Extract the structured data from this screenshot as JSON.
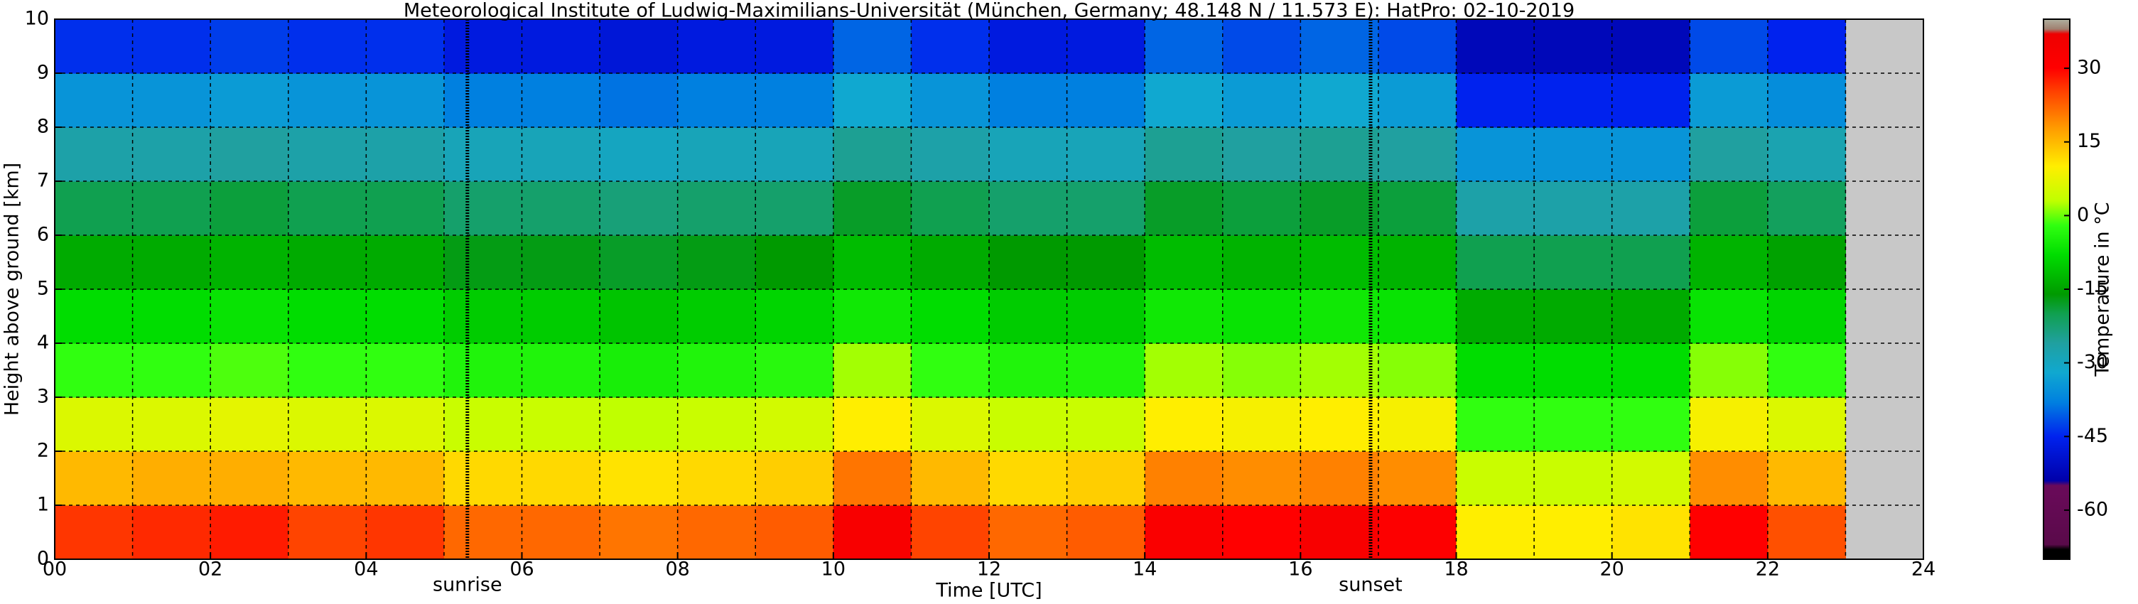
{
  "chart_data": {
    "type": "heatmap",
    "title": "Meteorological Institute of Ludwig-Maximilians-Universität (München, Germany; 48.148 N / 11.573 E):    HatPro: 02-10-2019",
    "xlabel": "Time [UTC]",
    "ylabel": "Height above ground [km]",
    "xlim": [
      0,
      24
    ],
    "ylim": [
      0,
      10
    ],
    "xticks": [
      {
        "value": 0,
        "label": "00"
      },
      {
        "value": 2,
        "label": "02"
      },
      {
        "value": 4,
        "label": "04"
      },
      {
        "value": 6,
        "label": "06"
      },
      {
        "value": 8,
        "label": "08"
      },
      {
        "value": 10,
        "label": "10"
      },
      {
        "value": 12,
        "label": "12"
      },
      {
        "value": 14,
        "label": "14"
      },
      {
        "value": 16,
        "label": "16"
      },
      {
        "value": 18,
        "label": "18"
      },
      {
        "value": 20,
        "label": "20"
      },
      {
        "value": 22,
        "label": "22"
      },
      24
    ],
    "xminorticks": [
      1,
      3,
      5,
      7,
      9,
      11,
      13,
      15,
      17,
      19,
      21,
      23
    ],
    "yticks": [
      0,
      1,
      2,
      3,
      4,
      5,
      6,
      7,
      8,
      9,
      10
    ],
    "grid": true,
    "annotations": [
      {
        "text": "sunrise",
        "x": 5.3
      },
      {
        "text": "sunset",
        "x": 16.9
      }
    ],
    "x_bins": [
      0,
      1,
      2,
      3,
      4,
      5,
      6,
      7,
      8,
      9,
      10,
      11,
      12,
      13,
      14,
      15,
      16,
      17,
      18,
      19,
      20,
      21,
      22,
      23
    ],
    "y_bins": [
      0,
      1,
      2,
      3,
      4,
      5,
      6,
      7,
      8,
      9,
      10
    ],
    "values": [
      [
        26,
        27,
        28,
        25,
        26,
        22,
        22,
        21,
        22,
        23,
        33,
        25,
        22,
        23,
        32,
        30,
        33,
        31,
        10,
        10,
        11,
        30,
        24
      ],
      [
        15,
        16,
        16,
        15,
        15,
        12,
        12,
        11,
        12,
        13,
        21,
        15,
        12,
        13,
        20,
        19,
        20,
        19,
        4,
        4,
        5,
        19,
        15
      ],
      [
        6,
        6,
        7,
        6,
        6,
        4,
        4,
        3,
        4,
        5,
        10,
        6,
        4,
        4,
        10,
        9,
        10,
        9,
        -2,
        -2,
        -2,
        9,
        6
      ],
      [
        -2,
        -2,
        -1,
        -2,
        -2,
        -4,
        -4,
        -5,
        -4,
        -3,
        2,
        -2,
        -4,
        -4,
        2,
        1,
        2,
        1,
        -8,
        -8,
        -8,
        1,
        -2
      ],
      [
        -8,
        -8,
        -7,
        -8,
        -8,
        -10,
        -10,
        -11,
        -10,
        -9,
        -6,
        -8,
        -10,
        -10,
        -6,
        -7,
        -6,
        -7,
        -14,
        -14,
        -14,
        -7,
        -9
      ],
      [
        -14,
        -14,
        -13,
        -14,
        -14,
        -17,
        -17,
        -18,
        -17,
        -16,
        -12,
        -14,
        -16,
        -16,
        -12,
        -13,
        -12,
        -13,
        -20,
        -20,
        -20,
        -13,
        -15
      ],
      [
        -20,
        -20,
        -19,
        -20,
        -20,
        -22,
        -22,
        -23,
        -22,
        -22,
        -18,
        -20,
        -22,
        -22,
        -18,
        -19,
        -18,
        -19,
        -27,
        -27,
        -27,
        -19,
        -21
      ],
      [
        -27,
        -27,
        -26,
        -27,
        -27,
        -29,
        -29,
        -30,
        -29,
        -29,
        -25,
        -27,
        -29,
        -29,
        -25,
        -26,
        -25,
        -26,
        -35,
        -35,
        -35,
        -26,
        -28
      ],
      [
        -35,
        -35,
        -34,
        -35,
        -35,
        -38,
        -38,
        -39,
        -38,
        -38,
        -32,
        -35,
        -38,
        -38,
        -32,
        -34,
        -32,
        -34,
        -45,
        -45,
        -45,
        -34,
        -36
      ],
      [
        -44,
        -44,
        -43,
        -44,
        -44,
        -47,
        -47,
        -48,
        -47,
        -47,
        -40,
        -44,
        -47,
        -47,
        -40,
        -42,
        -40,
        -42,
        -52,
        -52,
        -52,
        -42,
        -45
      ]
    ],
    "missing_color": "#c8c8c8",
    "colorbar": {
      "label": "Temperature in °C",
      "clim": [
        -70,
        40
      ],
      "ticks": [
        30,
        15,
        0,
        -15,
        -30,
        -45,
        -60
      ],
      "colorscale": [
        [
          -70,
          "#000000"
        ],
        [
          -68,
          "#000000"
        ],
        [
          -67,
          "#5a0a4a"
        ],
        [
          -55,
          "#6a0a5a"
        ],
        [
          -54,
          "#0000aa"
        ],
        [
          -45,
          "#0022ee"
        ],
        [
          -38,
          "#0080e0"
        ],
        [
          -32,
          "#10a8d0"
        ],
        [
          -26,
          "#20a0a0"
        ],
        [
          -20,
          "#10a050"
        ],
        [
          -16,
          "#009a00"
        ],
        [
          -8,
          "#00dd00"
        ],
        [
          -2,
          "#30ff10"
        ],
        [
          3,
          "#c0ff00"
        ],
        [
          10,
          "#ffee00"
        ],
        [
          18,
          "#ff9900"
        ],
        [
          25,
          "#ff4400"
        ],
        [
          30,
          "#ff0000"
        ],
        [
          37,
          "#ee0000"
        ],
        [
          38,
          "#a08070"
        ],
        [
          40,
          "#b0b0a0"
        ]
      ]
    }
  }
}
